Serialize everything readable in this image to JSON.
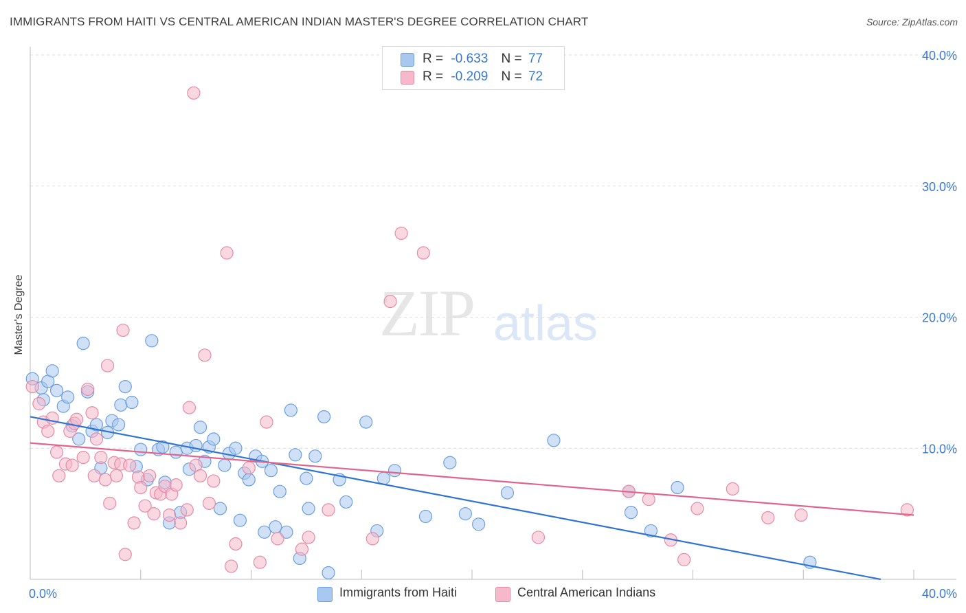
{
  "header": {
    "title": "IMMIGRANTS FROM HAITI VS CENTRAL AMERICAN INDIAN MASTER'S DEGREE CORRELATION CHART",
    "source": "Source: ZipAtlas.com"
  },
  "watermark": {
    "zip": "ZIP",
    "atlas": "atlas"
  },
  "legend_top": {
    "rows": [
      {
        "r_label": "R =",
        "r_value": "-0.633",
        "n_label": "N =",
        "n_value": "77",
        "color": "#a9c8f0"
      },
      {
        "r_label": "R =",
        "r_value": "-0.209",
        "n_label": "N =",
        "n_value": "72",
        "color": "#f6b8cb"
      }
    ]
  },
  "legend_bottom": {
    "items": [
      {
        "label": "Immigrants from Haiti",
        "color": "#a9c8f0"
      },
      {
        "label": "Central American Indians",
        "color": "#f6b8cb"
      }
    ]
  },
  "chart_data": {
    "type": "scatter",
    "title": "IMMIGRANTS FROM HAITI VS CENTRAL AMERICAN INDIAN MASTER'S DEGREE CORRELATION CHART",
    "xlabel": "",
    "ylabel": "Master's Degree",
    "xlim": [
      0,
      40
    ],
    "ylim": [
      0,
      40
    ],
    "x_tick_labels": [
      "0.0%",
      "40.0%"
    ],
    "y_tick_values": [
      10,
      20,
      30,
      40
    ],
    "y_tick_labels": [
      "10.0%",
      "20.0%",
      "30.0%",
      "40.0%"
    ],
    "grid": true,
    "legend": "top-center",
    "colors": {
      "haiti_fill": "#a9c8f0",
      "haiti_stroke": "#6a9fdf",
      "haiti_line": "#2f74d0",
      "cai_fill": "#f6b8cb",
      "cai_stroke": "#e58aa6",
      "cai_line": "#e0648c",
      "tick_label": "#3a78d0",
      "grid": "#dcdcdc",
      "axis": "#bbbbbb"
    },
    "series": [
      {
        "name": "Immigrants from Haiti",
        "r": -0.633,
        "n": 77,
        "trend": {
          "x": [
            0,
            38.5
          ],
          "y": [
            12.4,
            0
          ]
        },
        "points": [
          [
            0.1,
            15.3
          ],
          [
            0.5,
            14.6
          ],
          [
            0.6,
            13.7
          ],
          [
            0.8,
            15.1
          ],
          [
            1.0,
            15.9
          ],
          [
            1.2,
            14.4
          ],
          [
            1.5,
            13.2
          ],
          [
            1.7,
            13.9
          ],
          [
            1.9,
            11.7
          ],
          [
            2.2,
            10.7
          ],
          [
            2.4,
            18.0
          ],
          [
            2.6,
            14.3
          ],
          [
            2.8,
            11.3
          ],
          [
            3.0,
            11.8
          ],
          [
            3.2,
            8.5
          ],
          [
            3.5,
            11.2
          ],
          [
            3.7,
            12.1
          ],
          [
            4.0,
            11.8
          ],
          [
            4.1,
            13.3
          ],
          [
            4.3,
            14.7
          ],
          [
            4.6,
            13.5
          ],
          [
            4.8,
            8.6
          ],
          [
            5.0,
            9.9
          ],
          [
            5.3,
            7.6
          ],
          [
            5.5,
            18.2
          ],
          [
            5.8,
            9.9
          ],
          [
            6.0,
            10.1
          ],
          [
            6.1,
            7.4
          ],
          [
            6.3,
            4.3
          ],
          [
            6.6,
            9.7
          ],
          [
            6.8,
            5.1
          ],
          [
            7.1,
            10.0
          ],
          [
            7.2,
            8.4
          ],
          [
            7.5,
            10.2
          ],
          [
            7.7,
            11.6
          ],
          [
            7.9,
            9.0
          ],
          [
            8.1,
            10.1
          ],
          [
            8.3,
            10.7
          ],
          [
            8.6,
            5.4
          ],
          [
            8.8,
            8.7
          ],
          [
            9.0,
            9.6
          ],
          [
            9.3,
            10.0
          ],
          [
            9.5,
            4.5
          ],
          [
            9.7,
            8.1
          ],
          [
            9.9,
            7.6
          ],
          [
            10.2,
            9.4
          ],
          [
            10.5,
            9.0
          ],
          [
            10.6,
            3.6
          ],
          [
            10.9,
            8.3
          ],
          [
            11.1,
            4.0
          ],
          [
            11.3,
            6.7
          ],
          [
            11.6,
            3.6
          ],
          [
            11.8,
            12.9
          ],
          [
            12.0,
            9.5
          ],
          [
            12.2,
            1.6
          ],
          [
            12.5,
            7.7
          ],
          [
            12.6,
            5.4
          ],
          [
            12.9,
            9.4
          ],
          [
            13.3,
            12.4
          ],
          [
            13.5,
            0.5
          ],
          [
            14.0,
            7.6
          ],
          [
            14.3,
            5.9
          ],
          [
            15.2,
            12.0
          ],
          [
            15.7,
            3.7
          ],
          [
            16.0,
            7.7
          ],
          [
            16.5,
            8.3
          ],
          [
            17.9,
            4.8
          ],
          [
            19.0,
            8.9
          ],
          [
            19.7,
            5.0
          ],
          [
            20.3,
            4.2
          ],
          [
            21.6,
            6.6
          ],
          [
            23.7,
            10.6
          ],
          [
            27.2,
            5.1
          ],
          [
            28.1,
            3.7
          ],
          [
            29.3,
            7.0
          ],
          [
            35.3,
            1.3
          ],
          [
            27.1,
            6.7
          ]
        ]
      },
      {
        "name": "Central American Indians",
        "r": -0.209,
        "n": 72,
        "trend": {
          "x": [
            0,
            40
          ],
          "y": [
            10.4,
            4.9
          ]
        },
        "points": [
          [
            0.1,
            14.7
          ],
          [
            0.4,
            13.4
          ],
          [
            0.6,
            12.0
          ],
          [
            0.8,
            11.3
          ],
          [
            1.0,
            12.3
          ],
          [
            1.2,
            9.7
          ],
          [
            1.3,
            7.9
          ],
          [
            1.6,
            8.8
          ],
          [
            1.8,
            11.3
          ],
          [
            1.9,
            8.7
          ],
          [
            2.0,
            11.9
          ],
          [
            2.1,
            12.2
          ],
          [
            2.4,
            9.3
          ],
          [
            2.6,
            14.5
          ],
          [
            2.8,
            12.7
          ],
          [
            2.9,
            7.9
          ],
          [
            3.0,
            10.7
          ],
          [
            3.2,
            9.3
          ],
          [
            3.4,
            7.6
          ],
          [
            3.5,
            16.3
          ],
          [
            3.6,
            5.8
          ],
          [
            3.8,
            8.9
          ],
          [
            3.9,
            7.9
          ],
          [
            4.1,
            8.8
          ],
          [
            4.2,
            19.0
          ],
          [
            4.3,
            1.9
          ],
          [
            4.5,
            8.7
          ],
          [
            4.7,
            4.3
          ],
          [
            4.9,
            7.8
          ],
          [
            5.0,
            7.0
          ],
          [
            5.2,
            5.6
          ],
          [
            5.4,
            7.9
          ],
          [
            5.6,
            5.0
          ],
          [
            5.7,
            6.6
          ],
          [
            5.9,
            6.5
          ],
          [
            6.1,
            7.1
          ],
          [
            6.3,
            4.9
          ],
          [
            6.4,
            6.5
          ],
          [
            6.6,
            7.2
          ],
          [
            6.8,
            4.3
          ],
          [
            7.1,
            5.3
          ],
          [
            7.2,
            13.1
          ],
          [
            7.5,
            8.7
          ],
          [
            7.7,
            7.9
          ],
          [
            7.9,
            17.1
          ],
          [
            8.1,
            5.8
          ],
          [
            8.3,
            7.5
          ],
          [
            8.9,
            24.9
          ],
          [
            9.1,
            1.0
          ],
          [
            9.3,
            2.7
          ],
          [
            9.9,
            8.5
          ],
          [
            10.7,
            12.0
          ],
          [
            10.4,
            1.3
          ],
          [
            11.2,
            3.1
          ],
          [
            12.3,
            2.3
          ],
          [
            12.6,
            3.2
          ],
          [
            13.5,
            5.3
          ],
          [
            7.4,
            37.1
          ],
          [
            15.5,
            3.1
          ],
          [
            16.3,
            21.2
          ],
          [
            16.8,
            26.4
          ],
          [
            17.8,
            24.9
          ],
          [
            23.0,
            3.2
          ],
          [
            27.1,
            6.7
          ],
          [
            28.0,
            6.1
          ],
          [
            29.0,
            3.0
          ],
          [
            29.6,
            1.5
          ],
          [
            30.2,
            5.4
          ],
          [
            31.8,
            6.9
          ],
          [
            33.4,
            4.7
          ],
          [
            34.9,
            4.9
          ],
          [
            39.7,
            5.3
          ]
        ]
      }
    ]
  }
}
